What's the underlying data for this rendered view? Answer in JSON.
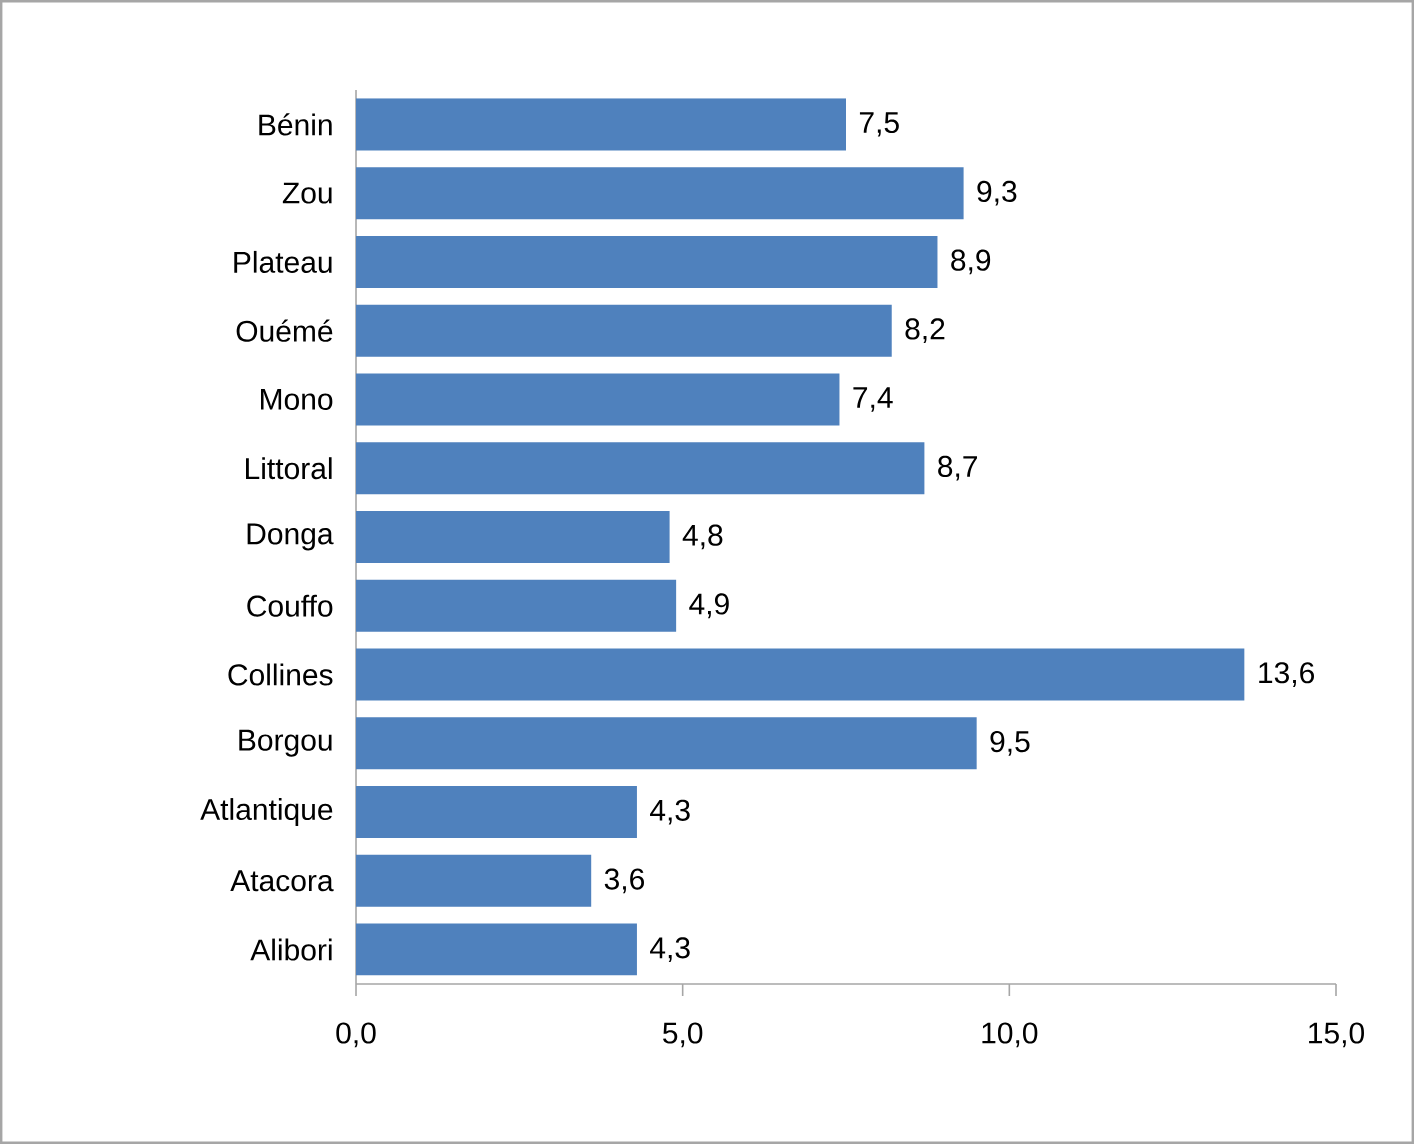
{
  "chart_data": {
    "type": "bar",
    "orientation": "horizontal",
    "categories": [
      "Bénin",
      "Zou",
      "Plateau",
      "Ouémé",
      "Mono",
      "Littoral",
      "Donga",
      "Couffo",
      "Collines",
      "Borgou",
      "Atlantique",
      "Atacora",
      "Alibori"
    ],
    "values": [
      7.5,
      9.3,
      8.9,
      8.2,
      7.4,
      8.7,
      4.8,
      4.9,
      13.6,
      9.5,
      4.3,
      3.6,
      4.3
    ],
    "value_labels": [
      "7,5",
      "9,3",
      "8,9",
      "8,2",
      "7,4",
      "8,7",
      "4,8",
      "4,9",
      "13,6",
      "9,5",
      "4,3",
      "3,6",
      "4,3"
    ],
    "color": "#4f81bd",
    "xlim": [
      0,
      15
    ],
    "xticks": [
      {
        "value": 0,
        "label": "0,0"
      },
      {
        "value": 5,
        "label": "5,0"
      },
      {
        "value": 10,
        "label": "10,0"
      },
      {
        "value": 15,
        "label": "15,0"
      }
    ]
  }
}
